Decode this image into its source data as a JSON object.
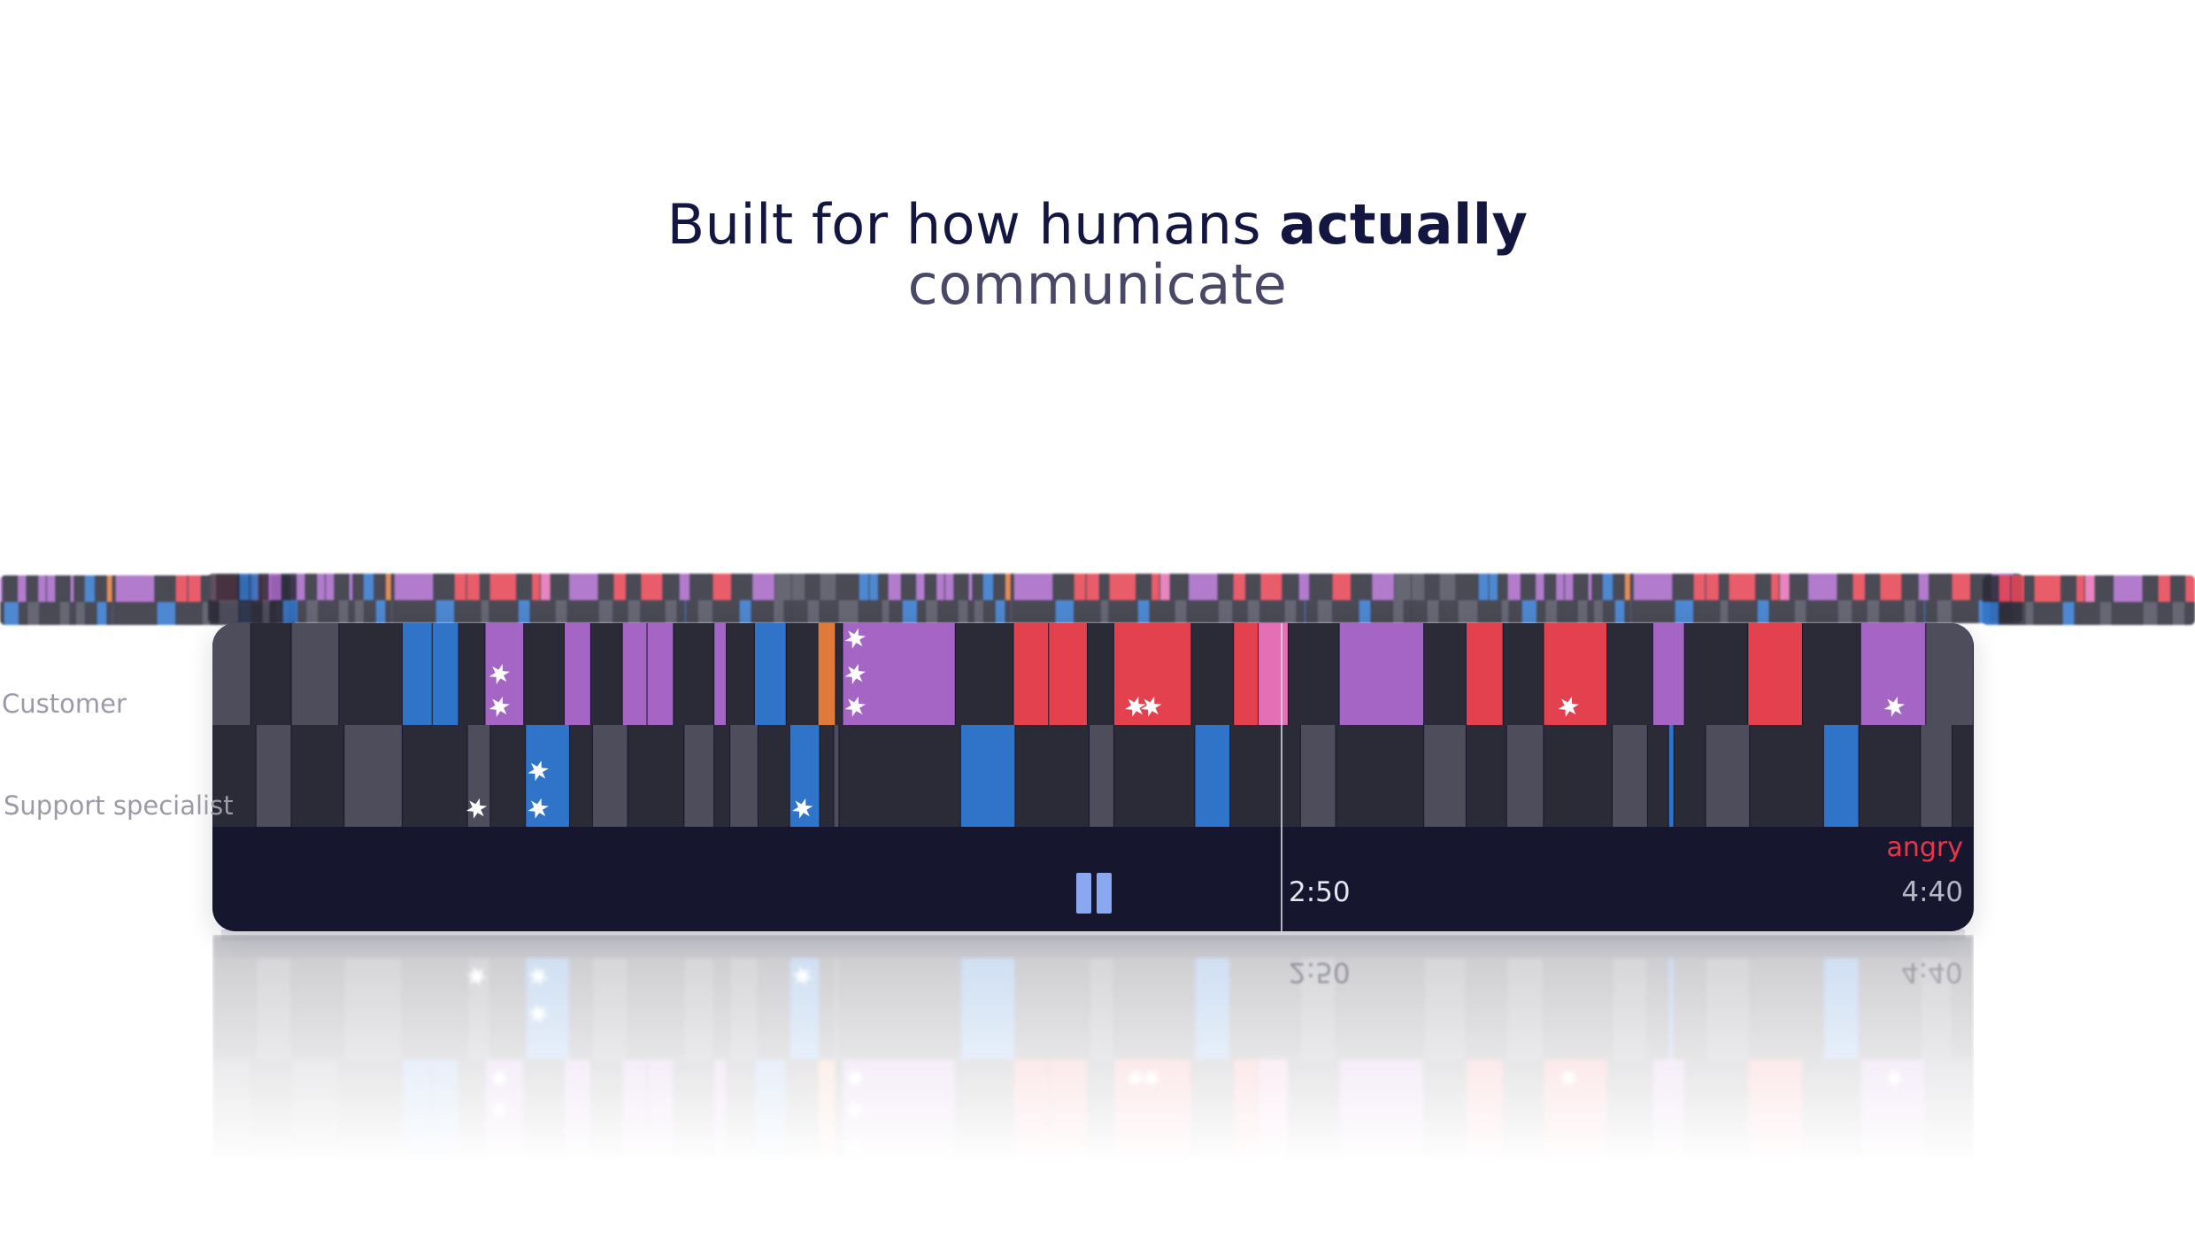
{
  "headline": {
    "line1_regular": "Built for how humans ",
    "line1_bold": "actually",
    "line2": "communicate"
  },
  "tracks": {
    "customer_label": "Customer",
    "support_label": "Support specialist"
  },
  "player": {
    "current_time": "2:50",
    "total_time": "4:40",
    "current_emotion": "angry",
    "playback_progress": 0.607,
    "state": "playing",
    "control_icon": "pause-icon"
  },
  "colors": {
    "panel_bg": "#16162e",
    "segment_dark": "#2b2b38",
    "segment_gray": "#4d4d5c",
    "purple": "#a565c4",
    "red": "#e4414f",
    "blue": "#2f74c9",
    "orange": "#e07a3a",
    "pink": "#e56fb4",
    "angry_text": "#e8364a"
  },
  "customer_segments": [
    {
      "start": 0.0,
      "end": 0.022,
      "color": "gray"
    },
    {
      "start": 0.022,
      "end": 0.045,
      "color": "dark"
    },
    {
      "start": 0.045,
      "end": 0.072,
      "color": "gray"
    },
    {
      "start": 0.072,
      "end": 0.108,
      "color": "dark"
    },
    {
      "start": 0.108,
      "end": 0.125,
      "color": "blue"
    },
    {
      "start": 0.125,
      "end": 0.14,
      "color": "blue"
    },
    {
      "start": 0.14,
      "end": 0.155,
      "color": "dark"
    },
    {
      "start": 0.155,
      "end": 0.177,
      "color": "purple"
    },
    {
      "start": 0.177,
      "end": 0.2,
      "color": "dark"
    },
    {
      "start": 0.2,
      "end": 0.215,
      "color": "purple"
    },
    {
      "start": 0.215,
      "end": 0.233,
      "color": "dark"
    },
    {
      "start": 0.233,
      "end": 0.247,
      "color": "purple"
    },
    {
      "start": 0.247,
      "end": 0.262,
      "color": "purple"
    },
    {
      "start": 0.262,
      "end": 0.285,
      "color": "dark"
    },
    {
      "start": 0.285,
      "end": 0.292,
      "color": "purple"
    },
    {
      "start": 0.292,
      "end": 0.308,
      "color": "dark"
    },
    {
      "start": 0.308,
      "end": 0.326,
      "color": "blue"
    },
    {
      "start": 0.326,
      "end": 0.344,
      "color": "dark"
    },
    {
      "start": 0.344,
      "end": 0.354,
      "color": "orange"
    },
    {
      "start": 0.354,
      "end": 0.358,
      "color": "dark"
    },
    {
      "start": 0.358,
      "end": 0.422,
      "color": "purple"
    },
    {
      "start": 0.422,
      "end": 0.455,
      "color": "dark"
    },
    {
      "start": 0.455,
      "end": 0.475,
      "color": "red"
    },
    {
      "start": 0.475,
      "end": 0.497,
      "color": "red"
    },
    {
      "start": 0.497,
      "end": 0.512,
      "color": "dark"
    },
    {
      "start": 0.512,
      "end": 0.556,
      "color": "red"
    },
    {
      "start": 0.556,
      "end": 0.58,
      "color": "dark"
    },
    {
      "start": 0.58,
      "end": 0.594,
      "color": "red"
    },
    {
      "start": 0.594,
      "end": 0.611,
      "color": "pink"
    },
    {
      "start": 0.611,
      "end": 0.64,
      "color": "dark"
    },
    {
      "start": 0.64,
      "end": 0.688,
      "color": "purple"
    },
    {
      "start": 0.688,
      "end": 0.712,
      "color": "dark"
    },
    {
      "start": 0.712,
      "end": 0.733,
      "color": "red"
    },
    {
      "start": 0.733,
      "end": 0.756,
      "color": "dark"
    },
    {
      "start": 0.756,
      "end": 0.792,
      "color": "red"
    },
    {
      "start": 0.792,
      "end": 0.818,
      "color": "dark"
    },
    {
      "start": 0.818,
      "end": 0.836,
      "color": "purple"
    },
    {
      "start": 0.836,
      "end": 0.872,
      "color": "dark"
    },
    {
      "start": 0.872,
      "end": 0.903,
      "color": "red"
    },
    {
      "start": 0.903,
      "end": 0.936,
      "color": "dark"
    },
    {
      "start": 0.936,
      "end": 0.973,
      "color": "purple"
    },
    {
      "start": 0.973,
      "end": 1.0,
      "color": "gray"
    }
  ],
  "support_segments": [
    {
      "start": 0.0,
      "end": 0.025,
      "color": "dark"
    },
    {
      "start": 0.025,
      "end": 0.045,
      "color": "gray"
    },
    {
      "start": 0.045,
      "end": 0.075,
      "color": "dark"
    },
    {
      "start": 0.075,
      "end": 0.108,
      "color": "gray"
    },
    {
      "start": 0.108,
      "end": 0.145,
      "color": "dark"
    },
    {
      "start": 0.145,
      "end": 0.158,
      "color": "gray"
    },
    {
      "start": 0.158,
      "end": 0.178,
      "color": "dark"
    },
    {
      "start": 0.178,
      "end": 0.203,
      "color": "blue"
    },
    {
      "start": 0.203,
      "end": 0.216,
      "color": "dark"
    },
    {
      "start": 0.216,
      "end": 0.236,
      "color": "gray"
    },
    {
      "start": 0.236,
      "end": 0.268,
      "color": "dark"
    },
    {
      "start": 0.268,
      "end": 0.285,
      "color": "gray"
    },
    {
      "start": 0.285,
      "end": 0.294,
      "color": "dark"
    },
    {
      "start": 0.294,
      "end": 0.31,
      "color": "gray"
    },
    {
      "start": 0.31,
      "end": 0.328,
      "color": "dark"
    },
    {
      "start": 0.328,
      "end": 0.345,
      "color": "blue"
    },
    {
      "start": 0.345,
      "end": 0.353,
      "color": "dark"
    },
    {
      "start": 0.353,
      "end": 0.356,
      "color": "gray"
    },
    {
      "start": 0.356,
      "end": 0.425,
      "color": "dark"
    },
    {
      "start": 0.425,
      "end": 0.456,
      "color": "blue"
    },
    {
      "start": 0.456,
      "end": 0.498,
      "color": "dark"
    },
    {
      "start": 0.498,
      "end": 0.512,
      "color": "gray"
    },
    {
      "start": 0.512,
      "end": 0.558,
      "color": "dark"
    },
    {
      "start": 0.558,
      "end": 0.578,
      "color": "blue"
    },
    {
      "start": 0.578,
      "end": 0.618,
      "color": "dark"
    },
    {
      "start": 0.618,
      "end": 0.638,
      "color": "gray"
    },
    {
      "start": 0.638,
      "end": 0.688,
      "color": "dark"
    },
    {
      "start": 0.688,
      "end": 0.712,
      "color": "gray"
    },
    {
      "start": 0.712,
      "end": 0.735,
      "color": "dark"
    },
    {
      "start": 0.735,
      "end": 0.756,
      "color": "gray"
    },
    {
      "start": 0.756,
      "end": 0.795,
      "color": "dark"
    },
    {
      "start": 0.795,
      "end": 0.815,
      "color": "gray"
    },
    {
      "start": 0.815,
      "end": 0.827,
      "color": "dark"
    },
    {
      "start": 0.827,
      "end": 0.83,
      "color": "blue"
    },
    {
      "start": 0.83,
      "end": 0.848,
      "color": "dark"
    },
    {
      "start": 0.848,
      "end": 0.873,
      "color": "gray"
    },
    {
      "start": 0.873,
      "end": 0.915,
      "color": "dark"
    },
    {
      "start": 0.915,
      "end": 0.935,
      "color": "blue"
    },
    {
      "start": 0.935,
      "end": 0.97,
      "color": "dark"
    },
    {
      "start": 0.97,
      "end": 0.988,
      "color": "gray"
    },
    {
      "start": 0.988,
      "end": 1.0,
      "color": "dark"
    }
  ],
  "customer_markers": [
    {
      "pos": 0.163,
      "row": 0.5
    },
    {
      "pos": 0.163,
      "row": 0.82
    },
    {
      "pos": 0.365,
      "row": 0.15
    },
    {
      "pos": 0.365,
      "row": 0.5
    },
    {
      "pos": 0.365,
      "row": 0.82
    },
    {
      "pos": 0.524,
      "row": 0.82
    },
    {
      "pos": 0.533,
      "row": 0.82
    },
    {
      "pos": 0.77,
      "row": 0.82
    },
    {
      "pos": 0.955,
      "row": 0.82
    }
  ],
  "support_markers": [
    {
      "pos": 0.15,
      "row": 0.82
    },
    {
      "pos": 0.185,
      "row": 0.45
    },
    {
      "pos": 0.185,
      "row": 0.82
    },
    {
      "pos": 0.335,
      "row": 0.82
    }
  ]
}
